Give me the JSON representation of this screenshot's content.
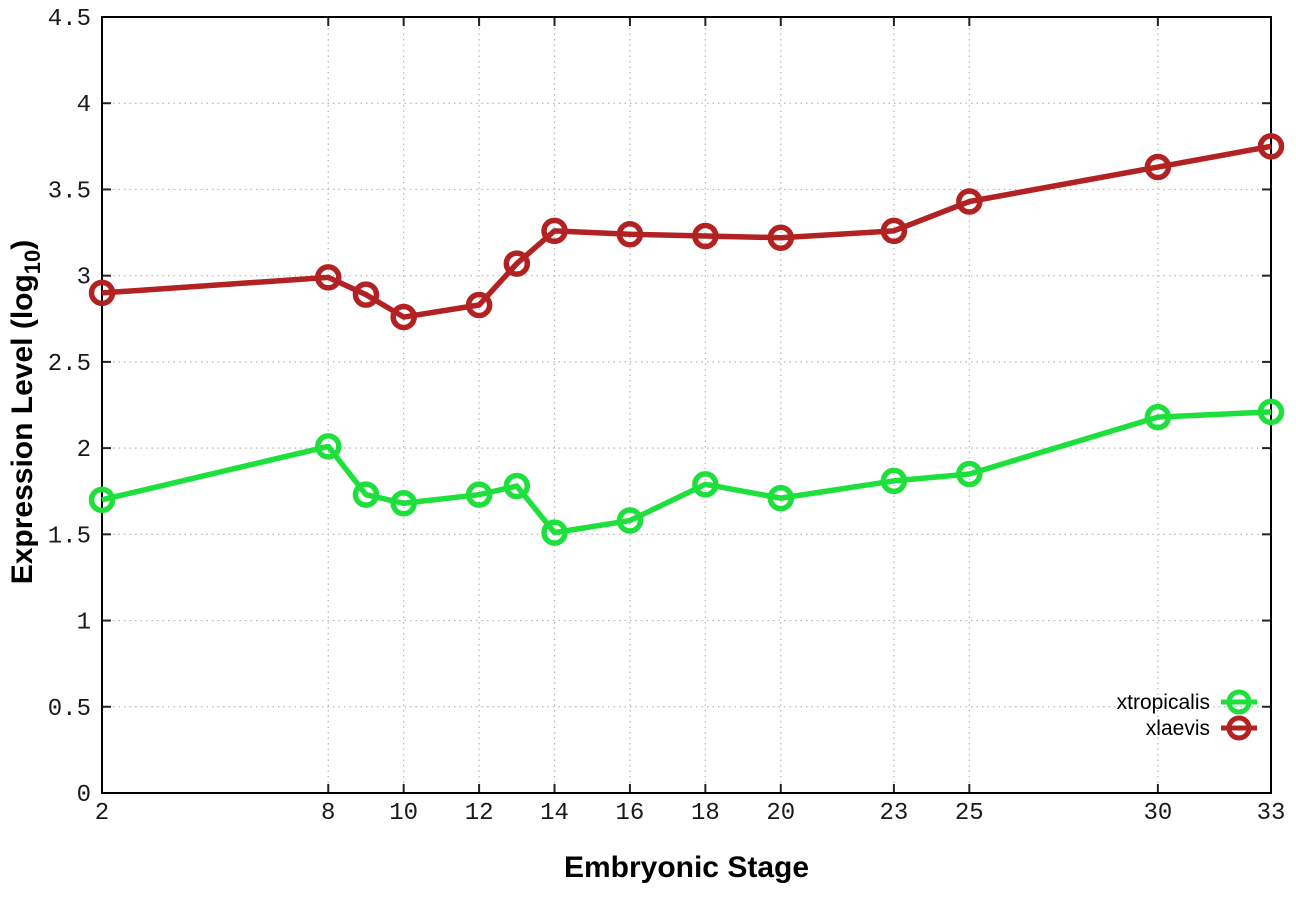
{
  "chart_data": {
    "type": "line",
    "title": "",
    "xlabel": "Embryonic Stage",
    "ylabel": {
      "text": "Expression Level (log10)",
      "prefix": "Expression Level (log",
      "sub": "10",
      "suffix": ")"
    },
    "xlim": [
      2,
      33
    ],
    "ylim": [
      0,
      4.5
    ],
    "x_tick_labels": [
      "2",
      "8",
      "10",
      "12",
      "14",
      "16",
      "18",
      "20",
      "23",
      "25",
      "30",
      "33"
    ],
    "x_tick_values": [
      2,
      8,
      10,
      12,
      14,
      16,
      18,
      20,
      23,
      25,
      30,
      33
    ],
    "y_tick_labels": [
      "0",
      "0.5",
      "1",
      "1.5",
      "2",
      "2.5",
      "3",
      "3.5",
      "4",
      "4.5"
    ],
    "y_tick_values": [
      0,
      0.5,
      1,
      1.5,
      2,
      2.5,
      3,
      3.5,
      4,
      4.5
    ],
    "grid": true,
    "legend_position": "bottom-right-inside",
    "series": [
      {
        "name": "xtropicalis",
        "color": "#1ee03c",
        "marker": "open-circle",
        "x": [
          2,
          8,
          9,
          10,
          12,
          13,
          14,
          16,
          18,
          20,
          23,
          25,
          30,
          33
        ],
        "values": [
          1.7,
          2.01,
          1.73,
          1.68,
          1.73,
          1.78,
          1.51,
          1.58,
          1.79,
          1.71,
          1.81,
          1.85,
          2.18,
          2.21
        ]
      },
      {
        "name": "xlaevis",
        "color": "#b22222",
        "marker": "open-circle",
        "x": [
          2,
          8,
          9,
          10,
          12,
          13,
          14,
          16,
          18,
          20,
          23,
          25,
          30,
          33
        ],
        "values": [
          2.9,
          2.99,
          2.89,
          2.76,
          2.83,
          3.07,
          3.26,
          3.24,
          3.23,
          3.22,
          3.26,
          3.43,
          3.63,
          3.75
        ]
      }
    ]
  },
  "colors": {
    "background": "#ffffff",
    "axis": "#000000",
    "tick": "#222222",
    "grid": "#b5b5b5",
    "tick_label": "#1a1a1a"
  }
}
